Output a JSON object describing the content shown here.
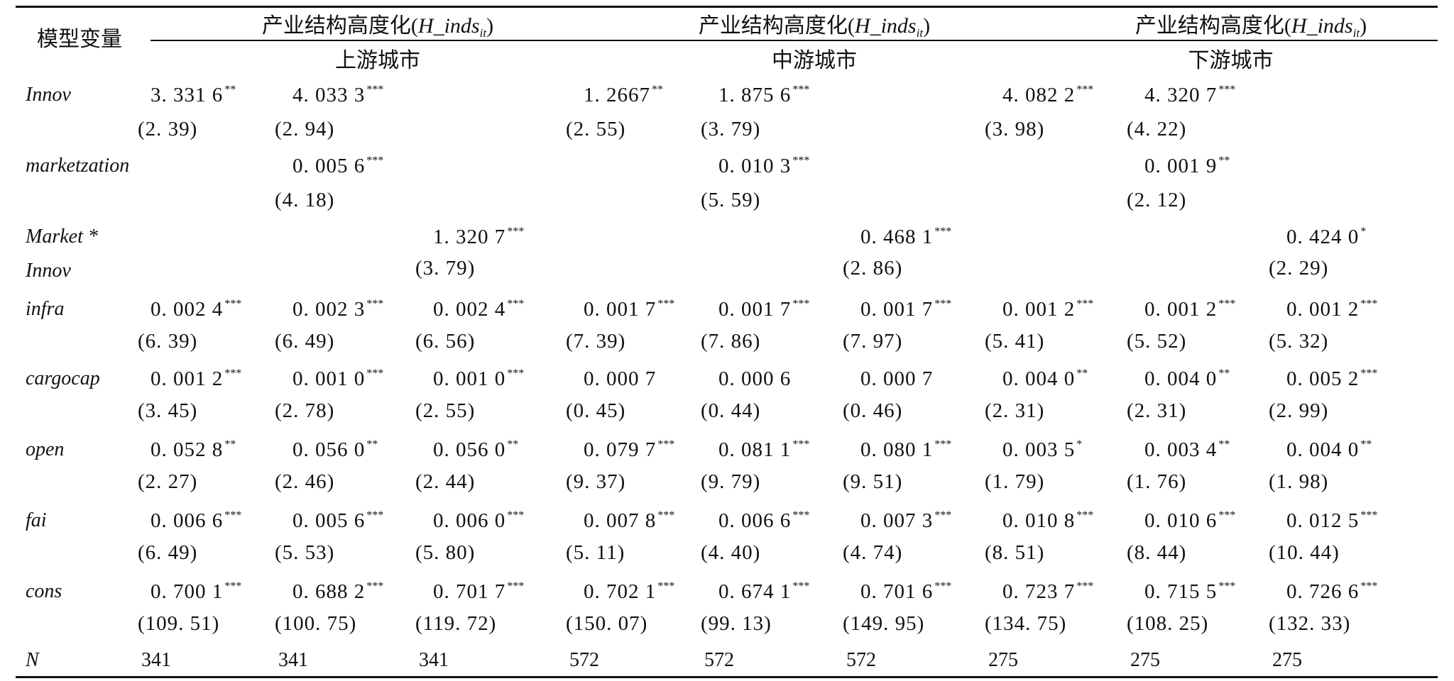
{
  "header": {
    "row_label": "模型变量",
    "group_title_prefix": "产业结构高度化(",
    "group_title_var": "H_inds",
    "group_title_sub": "it",
    "group_title_suffix": ")",
    "groups": [
      "上游城市",
      "中游城市",
      "下游城市"
    ]
  },
  "rows": [
    {
      "name": "Innov",
      "coef": [
        "3. 331 6",
        "4. 033 3",
        "",
        "1. 2667",
        "1. 875 6",
        "",
        "4. 082 2",
        "4. 320 7",
        ""
      ],
      "stars": [
        "**",
        "***",
        "",
        "**",
        "***",
        "",
        "***",
        "***",
        ""
      ],
      "t": [
        "(2. 39)",
        "(2. 94)",
        "",
        "(2. 55)",
        "(3. 79)",
        "",
        "(3. 98)",
        "(4. 22)",
        ""
      ]
    },
    {
      "name": "marketzation",
      "coef": [
        "",
        "0. 005 6",
        "",
        "",
        "0. 010 3",
        "",
        "",
        "0. 001 9",
        ""
      ],
      "stars": [
        "",
        "***",
        "",
        "",
        "***",
        "",
        "",
        "**",
        ""
      ],
      "t": [
        "",
        "(4. 18)",
        "",
        "",
        "(5. 59)",
        "",
        "",
        "(2. 12)",
        ""
      ]
    },
    {
      "name": "Market *",
      "name2": "Innov",
      "coef": [
        "",
        "",
        "1. 320 7",
        "",
        "",
        "0. 468 1",
        "",
        "",
        "0. 424 0"
      ],
      "stars": [
        "",
        "",
        "***",
        "",
        "",
        "***",
        "",
        "",
        "*"
      ],
      "t": [
        "",
        "",
        "(3. 79)",
        "",
        "",
        "(2. 86)",
        "",
        "",
        "(2. 29)"
      ]
    },
    {
      "name": "infra",
      "coef": [
        "0. 002 4",
        "0. 002 3",
        "0. 002 4",
        "0. 001 7",
        "0. 001 7",
        "0. 001 7",
        "0. 001 2",
        "0. 001 2",
        "0. 001 2"
      ],
      "stars": [
        "***",
        "***",
        "***",
        "***",
        "***",
        "***",
        "***",
        "***",
        "***"
      ],
      "t": [
        "(6. 39)",
        "(6. 49)",
        "(6. 56)",
        "(7. 39)",
        "(7. 86)",
        "(7. 97)",
        "(5. 41)",
        "(5. 52)",
        "(5. 32)"
      ]
    },
    {
      "name": "cargocap",
      "coef": [
        "0. 001 2",
        "0. 001 0",
        "0. 001 0",
        "0. 000 7",
        "0. 000 6",
        "0. 000 7",
        "0. 004 0",
        "0. 004 0",
        "0. 005 2"
      ],
      "stars": [
        "***",
        "***",
        "***",
        "",
        "",
        "",
        "**",
        "**",
        "***"
      ],
      "t": [
        "(3. 45)",
        "(2. 78)",
        "(2. 55)",
        "(0. 45)",
        "(0. 44)",
        "(0. 46)",
        "(2. 31)",
        "(2. 31)",
        "(2. 99)"
      ]
    },
    {
      "name": "open",
      "coef": [
        "0. 052 8",
        "0. 056 0",
        "0. 056 0",
        "0. 079 7",
        "0. 081 1",
        "0. 080 1",
        "0. 003 5",
        "0. 003 4",
        "0. 004 0"
      ],
      "stars": [
        "**",
        "**",
        "**",
        "***",
        "***",
        "***",
        "*",
        "**",
        "**"
      ],
      "t": [
        "(2. 27)",
        "(2. 46)",
        "(2. 44)",
        "(9. 37)",
        "(9. 79)",
        "(9. 51)",
        "(1. 79)",
        "(1. 76)",
        "(1. 98)"
      ]
    },
    {
      "name": "fai",
      "coef": [
        "0. 006 6",
        "0. 005 6",
        "0. 006 0",
        "0. 007 8",
        "0. 006 6",
        "0. 007 3",
        "0. 010 8",
        "0. 010 6",
        "0. 012 5"
      ],
      "stars": [
        "***",
        "***",
        "***",
        "***",
        "***",
        "***",
        "***",
        "***",
        "***"
      ],
      "t": [
        "(6. 49)",
        "(5. 53)",
        "(5. 80)",
        "(5. 11)",
        "(4. 40)",
        "(4. 74)",
        "(8. 51)",
        "(8. 44)",
        "(10. 44)"
      ]
    },
    {
      "name": "cons",
      "coef": [
        "0. 700 1",
        "0. 688 2",
        "0. 701 7",
        "0. 702 1",
        "0. 674 1",
        "0. 701 6",
        "0. 723 7",
        "0. 715 5",
        "0. 726 6"
      ],
      "stars": [
        "***",
        "***",
        "***",
        "***",
        "***",
        "***",
        "***",
        "***",
        "***"
      ],
      "t": [
        "(109. 51)",
        "(100. 75)",
        "(119. 72)",
        "(150. 07)",
        "(99. 13)",
        "(149. 95)",
        "(134. 75)",
        "(108. 25)",
        "(132. 33)"
      ]
    }
  ],
  "n_row": {
    "name": "N",
    "values": [
      "341",
      "341",
      "341",
      "572",
      "572",
      "572",
      "275",
      "275",
      "275"
    ]
  }
}
